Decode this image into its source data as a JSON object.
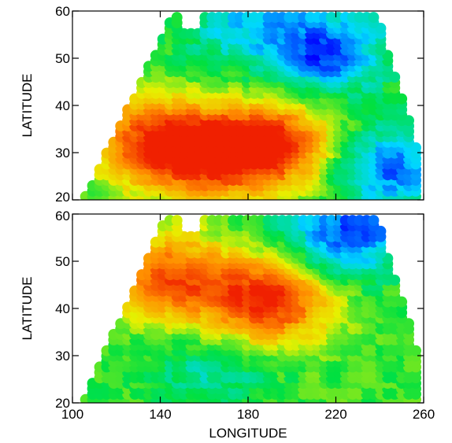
{
  "chart_data": [
    {
      "type": "heatmap",
      "panel": "top",
      "xlabel": "",
      "ylabel": "LATITUDE",
      "xlim": [
        100,
        260
      ],
      "ylim": [
        20,
        60
      ],
      "x_ticks": [
        "100",
        "140",
        "180",
        "220",
        "260"
      ],
      "y_ticks": [
        "20",
        "30",
        "40",
        "50",
        "60"
      ],
      "show_x_tick_labels": false,
      "colormap": [
        "#0000ff",
        "#00d8ff",
        "#00e040",
        "#e8f000",
        "#ff9000",
        "#f02000"
      ],
      "value_range": [
        0,
        1
      ],
      "maxima": [
        {
          "lon": 192,
          "lat": 32,
          "value": 1.0
        },
        {
          "lon": 135,
          "lat": 33,
          "value": 0.85
        },
        {
          "lon": 160,
          "lat": 30,
          "value": 0.9
        }
      ],
      "minima": [
        {
          "lon": 215,
          "lat": 52,
          "value": 0.05
        },
        {
          "lon": 245,
          "lat": 27,
          "value": 0.1
        },
        {
          "lon": 175,
          "lat": 58,
          "value": 0.25
        }
      ]
    },
    {
      "type": "heatmap",
      "panel": "bottom",
      "xlabel": "LONGITUDE",
      "ylabel": "LATITUDE",
      "xlim": [
        100,
        260
      ],
      "ylim": [
        20,
        60
      ],
      "x_ticks": [
        "100",
        "140",
        "180",
        "220",
        "260"
      ],
      "y_ticks": [
        "20",
        "30",
        "40",
        "50",
        "60"
      ],
      "show_x_tick_labels": true,
      "colormap": [
        "#0000ff",
        "#00d8ff",
        "#00e040",
        "#e8f000",
        "#ff9000",
        "#f02000"
      ],
      "value_range": [
        0,
        1
      ],
      "maxima": [
        {
          "lon": 190,
          "lat": 42,
          "value": 1.0
        },
        {
          "lon": 145,
          "lat": 47,
          "value": 0.9
        }
      ],
      "minima": [
        {
          "lon": 225,
          "lat": 56,
          "value": 0.05
        },
        {
          "lon": 165,
          "lat": 27,
          "value": 0.3
        }
      ]
    }
  ]
}
